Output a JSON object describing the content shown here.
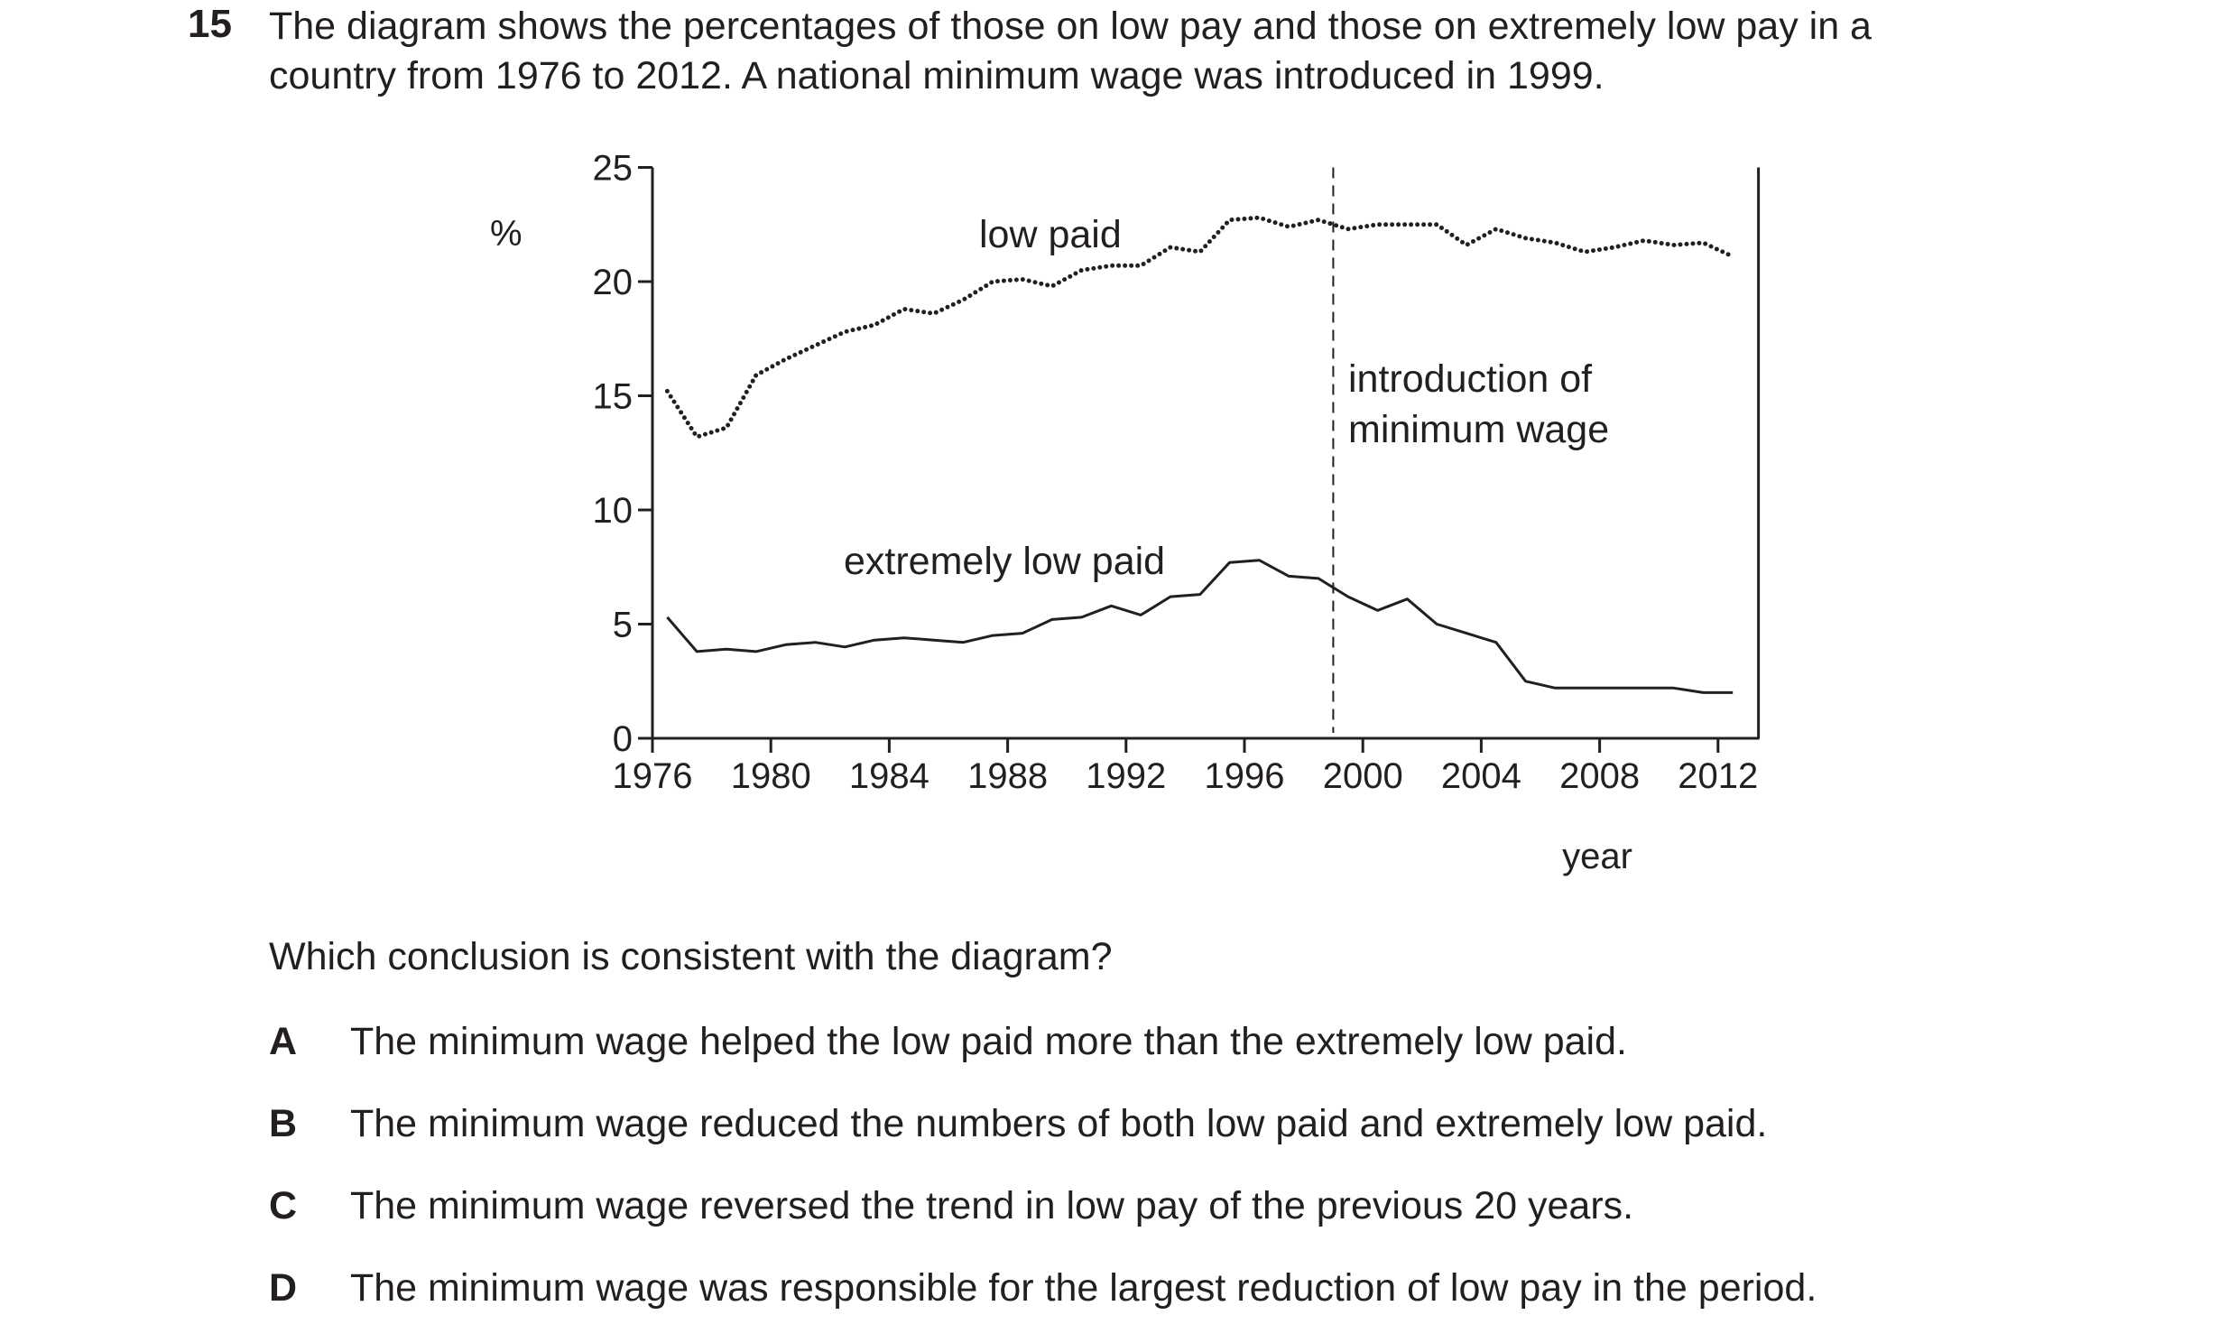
{
  "question": {
    "number": "15",
    "stem_line1": "The diagram shows the percentages of those on low pay and those on extremely low pay in a",
    "stem_line2": "country from 1976 to 2012. A national minimum wage was introduced in 1999.",
    "prompt": "Which conclusion is consistent with the diagram?",
    "options": [
      {
        "letter": "A",
        "text": "The minimum wage helped the low paid more than the extremely low paid."
      },
      {
        "letter": "B",
        "text": "The minimum wage reduced the numbers of both low paid and extremely low paid."
      },
      {
        "letter": "C",
        "text": "The minimum wage reversed the trend in low pay of the previous 20 years."
      },
      {
        "letter": "D",
        "text": "The minimum wage was responsible for the largest reduction of low pay in the period."
      }
    ]
  },
  "chart_data": {
    "type": "line",
    "title": "",
    "xlabel": "year",
    "ylabel": "%",
    "xlim": [
      1976,
      2013
    ],
    "ylim": [
      0,
      25
    ],
    "xticks": [
      1976,
      1980,
      1984,
      1988,
      1992,
      1996,
      2000,
      2004,
      2008,
      2012
    ],
    "yticks": [
      0,
      5,
      10,
      15,
      20,
      25
    ],
    "grid": false,
    "series": [
      {
        "name": "low paid",
        "style": "dotted",
        "x": [
          1976.5,
          1977.5,
          1978.5,
          1979.5,
          1980.5,
          1981.5,
          1982.5,
          1983.5,
          1984.5,
          1985.5,
          1986.5,
          1987.5,
          1988.5,
          1989.5,
          1990.5,
          1991.5,
          1992.5,
          1993.5,
          1994.5,
          1995.5,
          1996.5,
          1997.5,
          1998.5,
          1999.5,
          2000.5,
          2001.5,
          2002.5,
          2003.5,
          2004.5,
          2005.5,
          2006.5,
          2007.5,
          2008.5,
          2009.5,
          2010.5,
          2011.5,
          2012.5
        ],
        "values": [
          15.2,
          13.2,
          13.6,
          15.9,
          16.6,
          17.2,
          17.8,
          18.1,
          18.8,
          18.6,
          19.2,
          20.0,
          20.1,
          19.8,
          20.5,
          20.7,
          20.7,
          21.5,
          21.3,
          22.7,
          22.8,
          22.4,
          22.7,
          22.3,
          22.5,
          22.5,
          22.5,
          21.6,
          22.3,
          21.9,
          21.7,
          21.3,
          21.5,
          21.8,
          21.6,
          21.7,
          21.1
        ]
      },
      {
        "name": "extremely low paid",
        "style": "solid",
        "x": [
          1976.5,
          1977.5,
          1978.5,
          1979.5,
          1980.5,
          1981.5,
          1982.5,
          1983.5,
          1984.5,
          1985.5,
          1986.5,
          1987.5,
          1988.5,
          1989.5,
          1990.5,
          1991.5,
          1992.5,
          1993.5,
          1994.5,
          1995.5,
          1996.5,
          1997.5,
          1998.5,
          1999.5,
          2000.5,
          2001.5,
          2002.5,
          2003.5,
          2004.5,
          2005.5,
          2006.5,
          2007.5,
          2008.5,
          2009.5,
          2010.5,
          2011.5,
          2012.5
        ],
        "values": [
          5.3,
          3.8,
          3.9,
          3.8,
          4.1,
          4.2,
          4.0,
          4.3,
          4.4,
          4.3,
          4.2,
          4.5,
          4.6,
          5.2,
          5.3,
          5.8,
          5.4,
          6.2,
          6.3,
          7.7,
          7.8,
          7.1,
          7.0,
          6.2,
          5.6,
          6.1,
          5.0,
          4.6,
          4.2,
          2.5,
          2.2,
          2.2,
          2.2,
          2.2,
          2.2,
          2.0,
          2.0
        ]
      }
    ],
    "annotations": [
      {
        "text": "introduction of",
        "x": 1999
      },
      {
        "text": "minimum wage",
        "x": 1999
      }
    ],
    "vline": {
      "x": 1999,
      "style": "dashed"
    }
  }
}
